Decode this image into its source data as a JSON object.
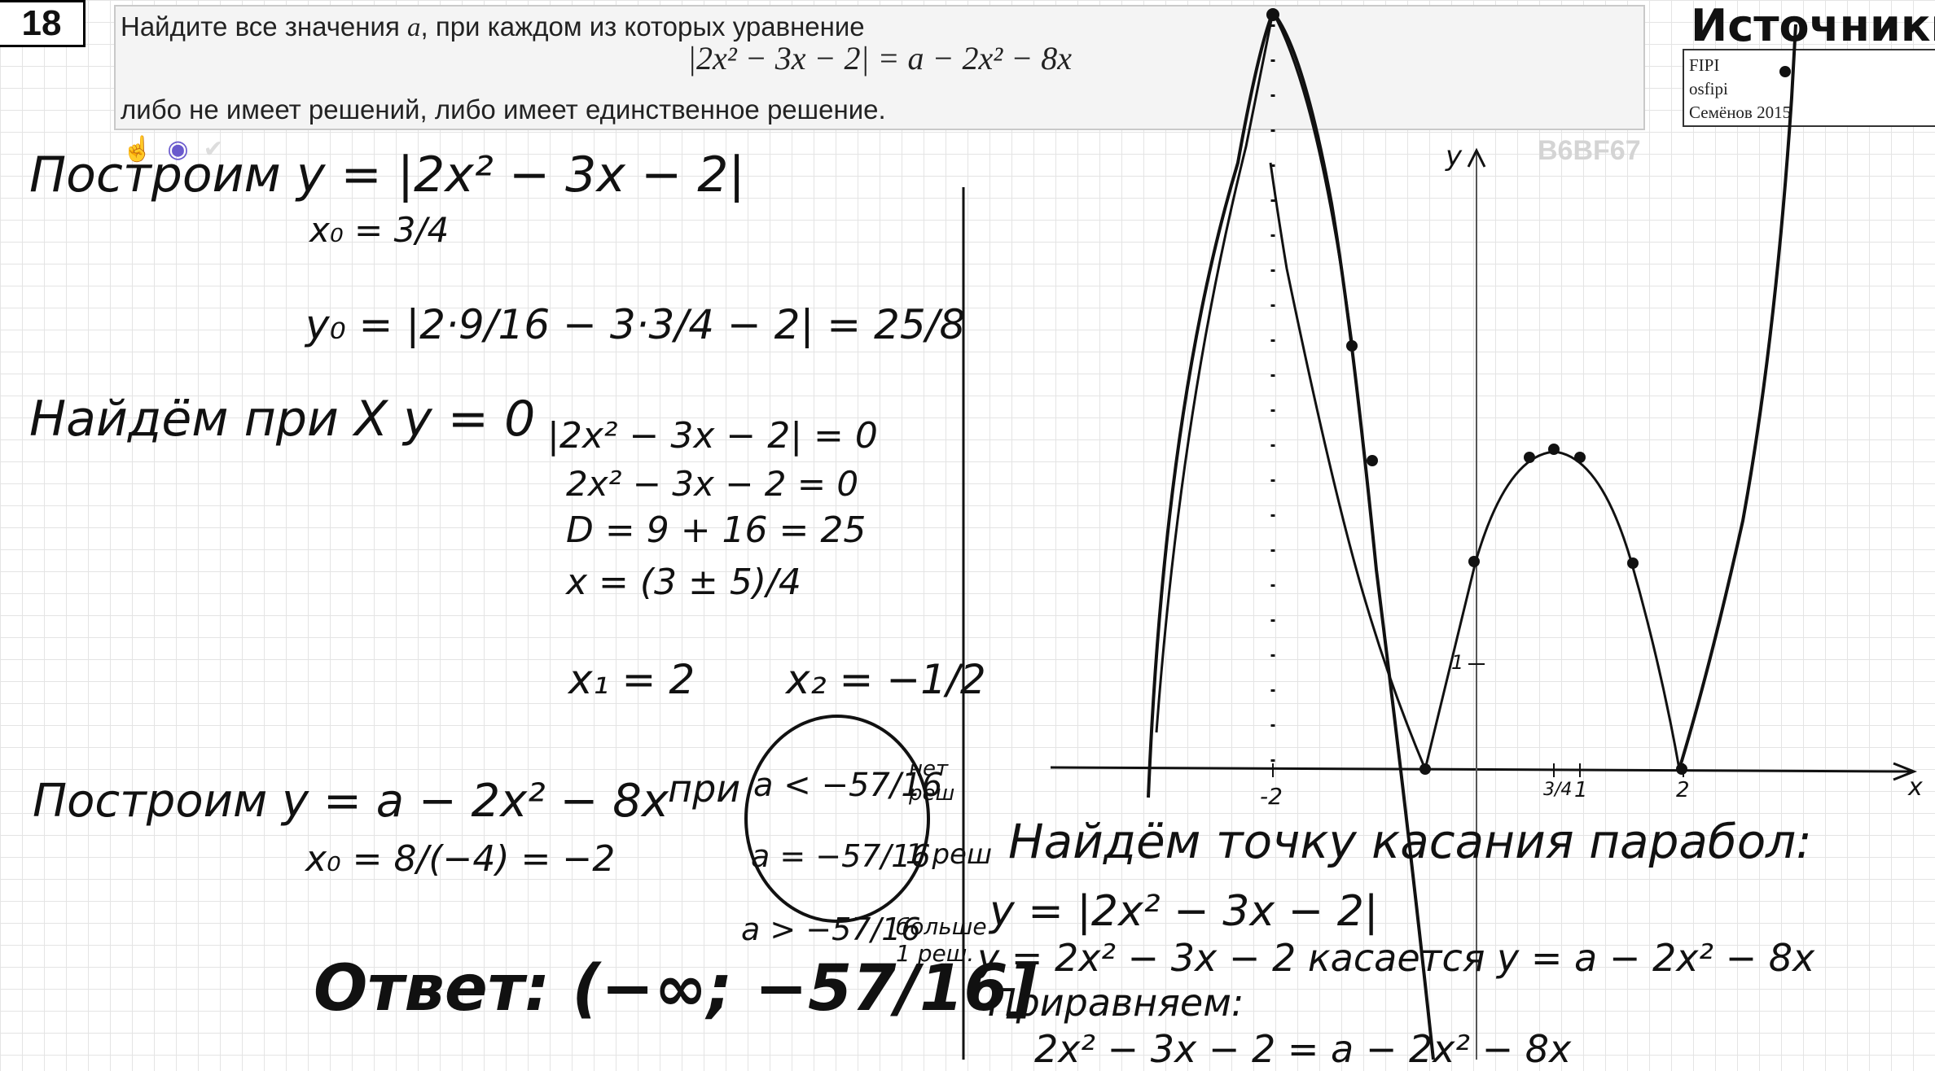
{
  "problem": {
    "number": "18",
    "text_before": "Найдите все значения ",
    "param": "a",
    "text_after": ", при каждом из которых уравнение",
    "equation": "|2x² − 3x − 2| = a − 2x² − 8x",
    "text_line3": "либо не имеет решений, либо имеет единственное решение.",
    "code": "B6BF67"
  },
  "sources": {
    "title": "Источники:",
    "items": [
      "FIPI",
      "osfipi",
      "Семёнов 2015"
    ]
  },
  "graph": {
    "axis_y_label": "y",
    "axis_x_label": "x",
    "tick_x": [
      "-2",
      "3/4",
      "1",
      "2"
    ],
    "tick_y": [
      "1"
    ]
  },
  "handwriting": {
    "l1": "Построим  y = |2x² − 3x − 2|",
    "l2": "x₀ = 3/4",
    "l3": "y₀ = |2·9/16 − 3·3/4 − 2| = 25/8",
    "l4": "Найдём при X  y = 0",
    "l5": "|2x² − 3x − 2| = 0",
    "l6": "2x² − 3x − 2 = 0",
    "l7": "D = 9 + 16 = 25",
    "l8": "x = (3 ± 5)/4",
    "l9": "x₁ = 2",
    "l10": "x₂ = −1/2",
    "l11": "Построим  y = a − 2x² − 8x",
    "l12": "x₀ = 8/(−4) = −2",
    "l13": "при",
    "l14": "a < −57/16",
    "l15": "нет реш",
    "l16": "a = −57/16",
    "l17": "1 реш",
    "l18": "a > −57/16",
    "l19": "больше 1 реш.",
    "l20": "Ответ: (−∞; −57/16]",
    "l21": "Найдём точку касания парабол:",
    "l22": "y = |2x² − 3x − 2|",
    "l23": "y = 2x² − 3x − 2   касается   y = a − 2x² − 8x",
    "l24": "Приравняем:",
    "l25": "2x² − 3x − 2 = a − 2x² − 8x"
  },
  "colors": {
    "ink": "#111111",
    "grid": "#e4e4e4",
    "panel": "#f4f4f4"
  }
}
